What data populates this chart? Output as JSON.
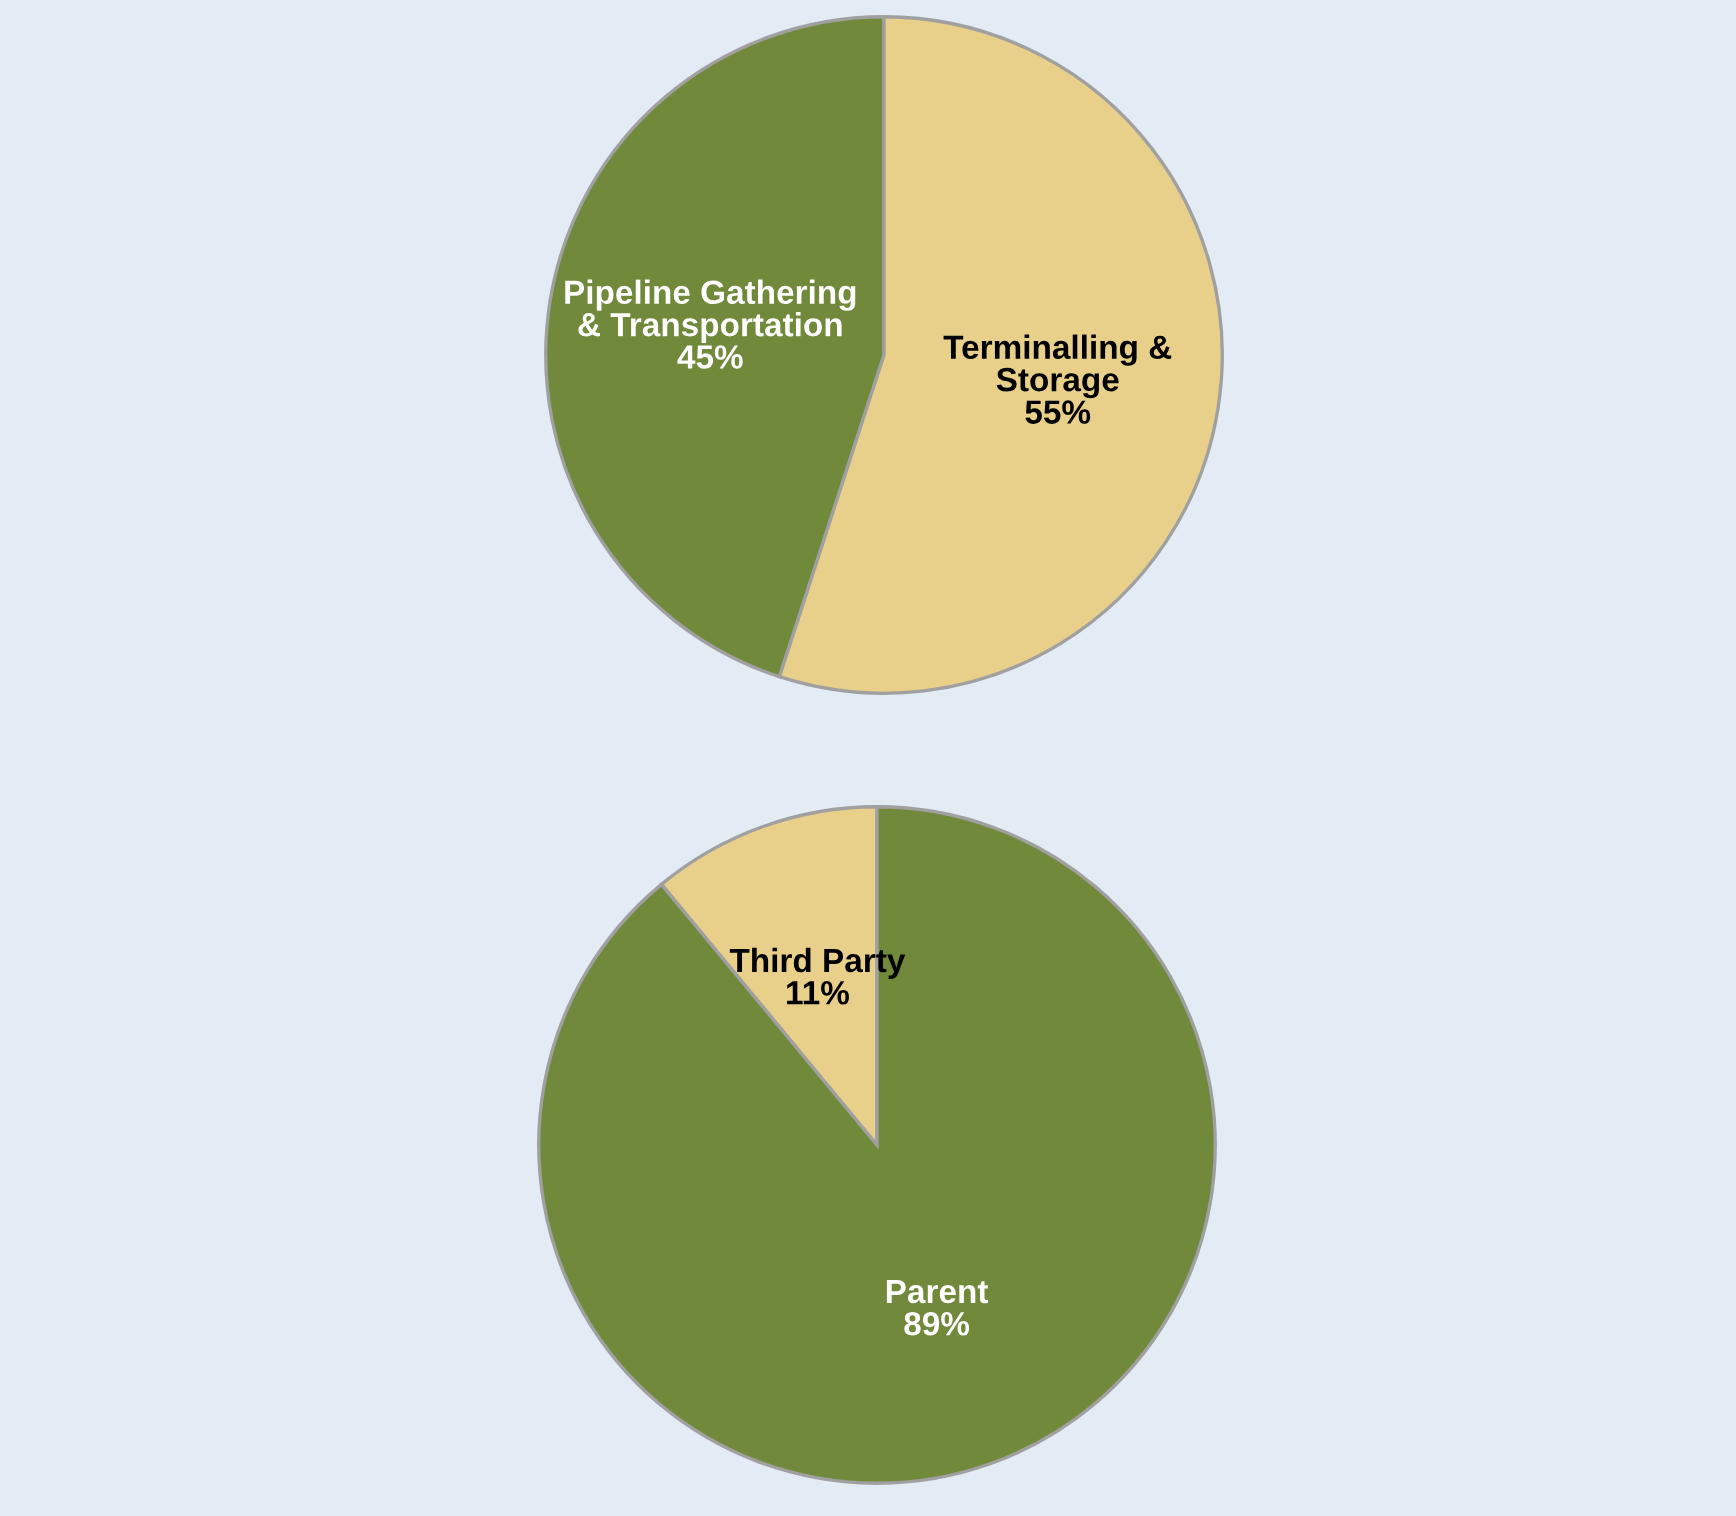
{
  "chart_data": [
    {
      "type": "pie",
      "categories": [
        "Pipeline Gathering\n& Transportation",
        "Terminalling &\nStorage"
      ],
      "values": [
        45,
        55
      ],
      "value_labels": [
        "45%",
        "55%"
      ],
      "colors": [
        "#71893a",
        "#e9d08a"
      ]
    },
    {
      "type": "pie",
      "categories": [
        "Third Party",
        "Parent"
      ],
      "values": [
        11,
        89
      ],
      "value_labels": [
        "11%",
        "89%"
      ],
      "colors": [
        "#e9d08a",
        "#71893a"
      ]
    }
  ]
}
